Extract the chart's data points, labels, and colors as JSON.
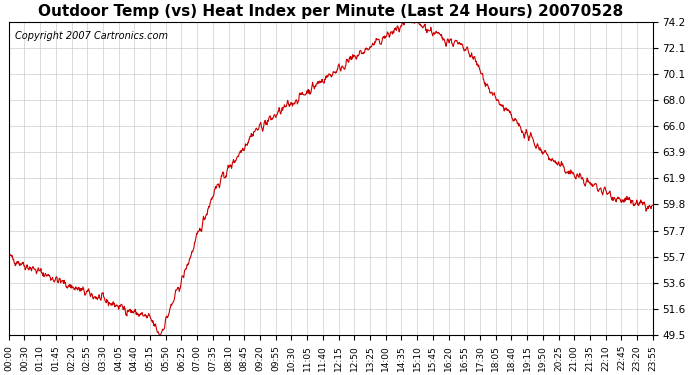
{
  "title": "Outdoor Temp (vs) Heat Index per Minute (Last 24 Hours) 20070528",
  "copyright": "Copyright 2007 Cartronics.com",
  "line_color": "#cc0000",
  "background_color": "#ffffff",
  "plot_bg_color": "#ffffff",
  "grid_color": "#cccccc",
  "yticks": [
    49.5,
    51.6,
    53.6,
    55.7,
    57.7,
    59.8,
    61.9,
    63.9,
    66.0,
    68.0,
    70.1,
    72.1,
    74.2
  ],
  "ymin": 49.5,
  "ymax": 74.2,
  "xtick_labels": [
    "00:00",
    "00:30",
    "01:10",
    "01:45",
    "02:20",
    "02:55",
    "03:30",
    "04:05",
    "04:40",
    "05:15",
    "05:50",
    "06:25",
    "07:00",
    "07:35",
    "08:10",
    "08:45",
    "09:20",
    "09:55",
    "10:30",
    "11:05",
    "11:40",
    "12:15",
    "12:50",
    "13:25",
    "14:00",
    "14:35",
    "15:10",
    "15:45",
    "16:20",
    "16:55",
    "17:30",
    "18:05",
    "18:40",
    "19:15",
    "19:50",
    "20:25",
    "21:00",
    "21:35",
    "22:10",
    "22:45",
    "23:20",
    "23:55"
  ],
  "keypoints_t": [
    0.0,
    0.035,
    0.09,
    0.16,
    0.22,
    0.235,
    0.27,
    0.32,
    0.38,
    0.45,
    0.52,
    0.6,
    0.625,
    0.645,
    0.67,
    0.695,
    0.72,
    0.75,
    0.8,
    0.85,
    0.9,
    0.95,
    1.0
  ],
  "keypoints_v": [
    55.7,
    54.8,
    53.5,
    52.0,
    50.8,
    49.5,
    54.0,
    61.0,
    65.5,
    68.2,
    70.8,
    73.5,
    74.2,
    73.8,
    73.0,
    72.5,
    71.5,
    68.5,
    65.5,
    63.0,
    61.5,
    60.2,
    59.5
  ],
  "num_points": 1440,
  "seed": 42,
  "title_fontsize": 11,
  "copyright_fontsize": 7,
  "ytick_fontsize": 7.5,
  "xtick_fontsize": 6.5
}
